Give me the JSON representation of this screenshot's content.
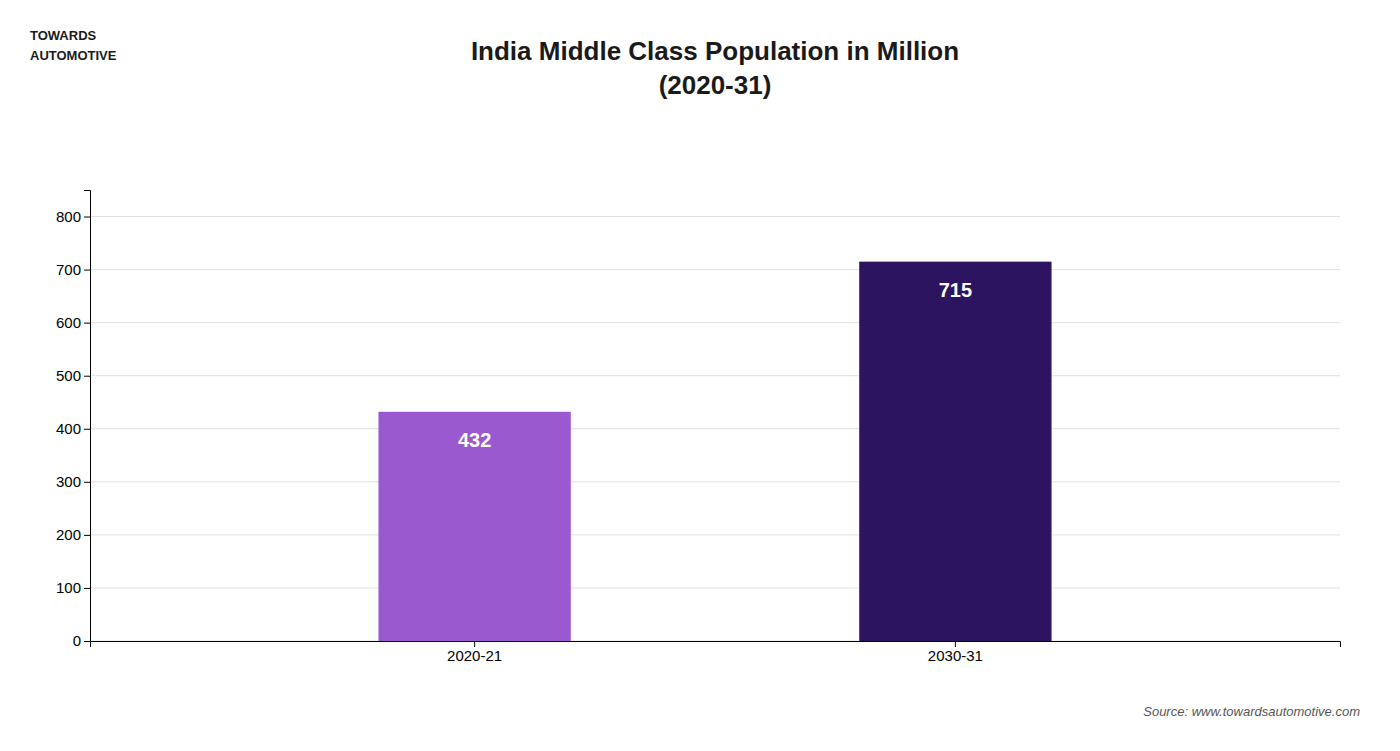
{
  "chart_data": {
    "type": "bar",
    "title": "India Middle Class Population in Million\n(2020-31)",
    "categories": [
      "2020-21",
      "2030-31"
    ],
    "values": [
      432,
      715
    ],
    "colors": [
      "#9b59d0",
      "#2d1460"
    ],
    "ylim": [
      0,
      850
    ],
    "yticks": [
      0,
      100,
      200,
      300,
      400,
      500,
      600,
      700,
      800
    ],
    "grid": true,
    "data_labels": true,
    "annotations": [
      "Source: www.towardsautomotive.com",
      "TOWARDS",
      "AUTOMOTIVE"
    ]
  }
}
